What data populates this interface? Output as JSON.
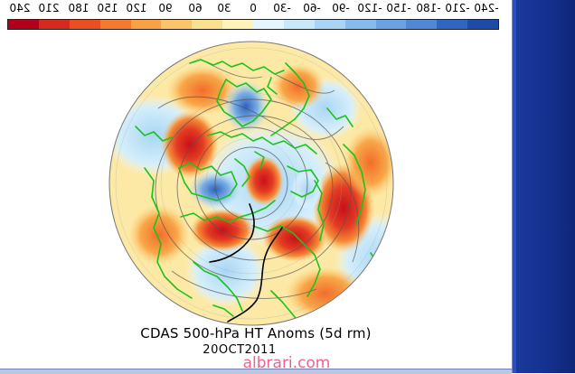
{
  "scale": {
    "labels": [
      "240",
      "210",
      "180",
      "150",
      "120",
      "90",
      "60",
      "30",
      "0",
      "-30",
      "-60",
      "-90",
      "-120",
      "-150",
      "-180",
      "-210",
      "-240"
    ],
    "colors": [
      "#b0001a",
      "#d52b1e",
      "#ea4f24",
      "#f47a30",
      "#f8a245",
      "#fbc46a",
      "#fde08f",
      "#fff3b8",
      "#e6f6ff",
      "#c8e8fb",
      "#a9d4f6",
      "#86bbee",
      "#6aa2e4",
      "#4f88d6",
      "#2f66c2",
      "#1d4ca8"
    ]
  },
  "map": {
    "title": "CDAS 500-hPa HT Anoms (5d rm)",
    "date": "20OCT2011",
    "watermark": "albrari.com",
    "colors": {
      "background": "#fde9a6",
      "warm_strong": "#d9321f",
      "warm_mid": "#f27a2e",
      "warm_light": "#f9b865",
      "cool_light": "#c6e6f6",
      "cool_mid": "#6fa8e2",
      "cool_strong": "#3b6fc9",
      "coastline": "#19c41a",
      "contour": "#555555",
      "annotation": "#000000"
    }
  }
}
